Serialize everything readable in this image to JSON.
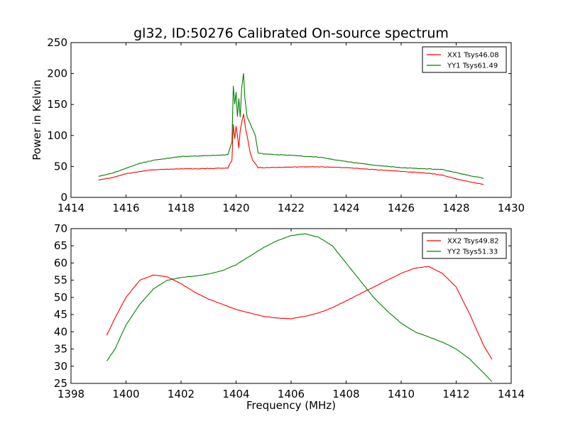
{
  "figure": {
    "title": "gl32, ID:50276 Calibrated On-source spectrum",
    "xlabel": "Frequency (MHz)",
    "ylabel": "Power in Kelvin",
    "colors": {
      "red": "#ff0000",
      "green": "#008000"
    }
  },
  "chart_data": [
    {
      "type": "line",
      "title": "gl32, ID:50276 Calibrated On-source spectrum",
      "xlabel": "",
      "ylabel": "Power in Kelvin",
      "xlim": [
        1414,
        1430
      ],
      "ylim": [
        0,
        250
      ],
      "xticks": [
        1414,
        1416,
        1418,
        1420,
        1422,
        1424,
        1426,
        1428,
        1430
      ],
      "yticks": [
        0,
        50,
        100,
        150,
        200,
        250
      ],
      "grid": false,
      "legend_position": "top-right",
      "series": [
        {
          "name": "XX1 Tsys46.08",
          "color": "#ff0000",
          "points": [
            [
              1415.0,
              28
            ],
            [
              1415.5,
              32
            ],
            [
              1416.0,
              38
            ],
            [
              1416.5,
              42
            ],
            [
              1417.0,
              44.5
            ],
            [
              1418.0,
              46
            ],
            [
              1419.0,
              46.5
            ],
            [
              1419.7,
              47.5
            ],
            [
              1419.85,
              60
            ],
            [
              1419.9,
              118
            ],
            [
              1419.95,
              95
            ],
            [
              1420.0,
              115
            ],
            [
              1420.05,
              100
            ],
            [
              1420.1,
              80
            ],
            [
              1420.15,
              108
            ],
            [
              1420.2,
              120
            ],
            [
              1420.27,
              135
            ],
            [
              1420.35,
              110
            ],
            [
              1420.4,
              100
            ],
            [
              1420.5,
              75
            ],
            [
              1420.6,
              60
            ],
            [
              1420.7,
              55
            ],
            [
              1420.8,
              48
            ],
            [
              1421.0,
              48
            ],
            [
              1422.0,
              49
            ],
            [
              1423.0,
              49.5
            ],
            [
              1424.0,
              48
            ],
            [
              1425.0,
              45
            ],
            [
              1426.0,
              42
            ],
            [
              1427.0,
              39
            ],
            [
              1427.5,
              36
            ],
            [
              1428.0,
              30
            ],
            [
              1428.5,
              25
            ],
            [
              1429.0,
              21
            ]
          ]
        },
        {
          "name": "YY1 Tsys61.49",
          "color": "#008000",
          "points": [
            [
              1415.0,
              34
            ],
            [
              1415.5,
              39
            ],
            [
              1416.0,
              47
            ],
            [
              1416.5,
              55
            ],
            [
              1417.0,
              60
            ],
            [
              1417.5,
              63
            ],
            [
              1418.0,
              66
            ],
            [
              1419.0,
              67.5
            ],
            [
              1419.7,
              69
            ],
            [
              1419.85,
              90
            ],
            [
              1419.9,
              180
            ],
            [
              1419.95,
              150
            ],
            [
              1420.0,
              170
            ],
            [
              1420.05,
              130
            ],
            [
              1420.1,
              160
            ],
            [
              1420.15,
              130
            ],
            [
              1420.2,
              175
            ],
            [
              1420.27,
              200
            ],
            [
              1420.32,
              160
            ],
            [
              1420.4,
              130
            ],
            [
              1420.5,
              120
            ],
            [
              1420.6,
              110
            ],
            [
              1420.7,
              100
            ],
            [
              1420.8,
              72
            ],
            [
              1421.0,
              70
            ],
            [
              1422.0,
              68
            ],
            [
              1423.0,
              65
            ],
            [
              1424.0,
              58
            ],
            [
              1425.0,
              52
            ],
            [
              1426.0,
              48
            ],
            [
              1427.0,
              46
            ],
            [
              1427.5,
              45
            ],
            [
              1428.0,
              40
            ],
            [
              1428.5,
              35
            ],
            [
              1429.0,
              31
            ]
          ]
        }
      ]
    },
    {
      "type": "line",
      "title": "",
      "xlabel": "Frequency (MHz)",
      "ylabel": "",
      "xlim": [
        1398,
        1414
      ],
      "ylim": [
        25,
        70
      ],
      "xticks": [
        1398,
        1400,
        1402,
        1404,
        1406,
        1408,
        1410,
        1412,
        1414
      ],
      "yticks": [
        25,
        30,
        35,
        40,
        45,
        50,
        55,
        60,
        65,
        70
      ],
      "grid": false,
      "legend_position": "top-right",
      "series": [
        {
          "name": "XX2 Tsys49.82",
          "color": "#ff0000",
          "points": [
            [
              1399.3,
              39
            ],
            [
              1399.6,
              44
            ],
            [
              1400.0,
              50
            ],
            [
              1400.5,
              55
            ],
            [
              1401.0,
              56.5
            ],
            [
              1401.5,
              56
            ],
            [
              1402.0,
              54
            ],
            [
              1402.5,
              51.5
            ],
            [
              1403.0,
              49.5
            ],
            [
              1403.5,
              48
            ],
            [
              1404.0,
              46.5
            ],
            [
              1404.5,
              45.5
            ],
            [
              1405.0,
              44.5
            ],
            [
              1405.5,
              44
            ],
            [
              1406.0,
              43.8
            ],
            [
              1406.5,
              44.5
            ],
            [
              1407.0,
              45.5
            ],
            [
              1407.5,
              47
            ],
            [
              1408.0,
              49
            ],
            [
              1408.5,
              51
            ],
            [
              1409.0,
              53
            ],
            [
              1409.5,
              55
            ],
            [
              1410.0,
              57
            ],
            [
              1410.5,
              58.5
            ],
            [
              1411.0,
              59
            ],
            [
              1411.5,
              57
            ],
            [
              1412.0,
              53
            ],
            [
              1412.5,
              45
            ],
            [
              1413.0,
              36
            ],
            [
              1413.3,
              32
            ]
          ]
        },
        {
          "name": "YY2 Tsys51.33",
          "color": "#008000",
          "points": [
            [
              1399.3,
              31.5
            ],
            [
              1399.6,
              35
            ],
            [
              1400.0,
              42
            ],
            [
              1400.5,
              48
            ],
            [
              1401.0,
              52.5
            ],
            [
              1401.5,
              55
            ],
            [
              1402.0,
              55.8
            ],
            [
              1402.5,
              56.2
            ],
            [
              1403.0,
              56.8
            ],
            [
              1403.5,
              57.8
            ],
            [
              1404.0,
              59.5
            ],
            [
              1404.5,
              62
            ],
            [
              1405.0,
              64.5
            ],
            [
              1405.5,
              66.5
            ],
            [
              1406.0,
              68
            ],
            [
              1406.5,
              68.5
            ],
            [
              1407.0,
              67.5
            ],
            [
              1407.5,
              65
            ],
            [
              1408.0,
              60
            ],
            [
              1408.5,
              55
            ],
            [
              1409.0,
              50
            ],
            [
              1409.5,
              46
            ],
            [
              1410.0,
              42.5
            ],
            [
              1410.5,
              40
            ],
            [
              1411.0,
              38.5
            ],
            [
              1411.5,
              37
            ],
            [
              1412.0,
              35
            ],
            [
              1412.5,
              32
            ],
            [
              1413.0,
              28
            ],
            [
              1413.3,
              25.5
            ]
          ]
        }
      ]
    }
  ]
}
